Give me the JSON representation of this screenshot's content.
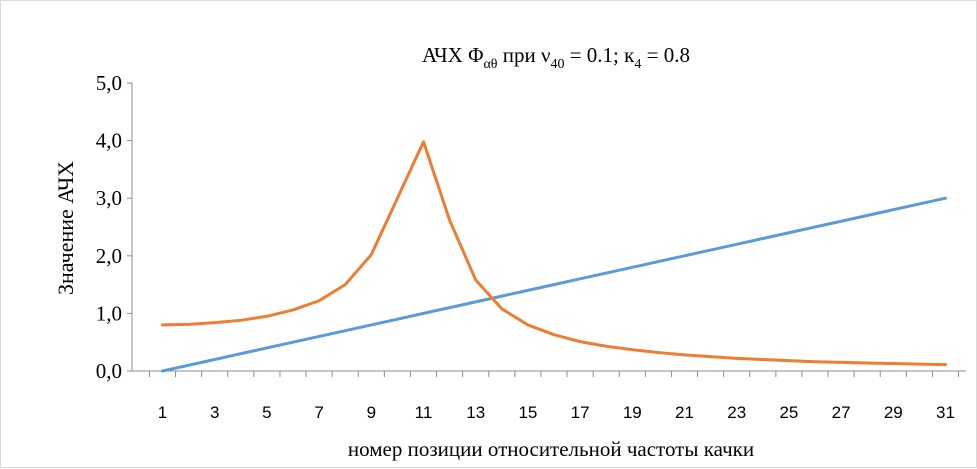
{
  "chart_data": {
    "type": "line",
    "title": {
      "prefix": "АЧХ Φ",
      "prefix_sub": "αθ",
      "middle": " при ν",
      "middle_sub": "40",
      "rest1": " = 0.1; к",
      "rest1_sub": "4",
      "rest2": " = 0.8"
    },
    "xlabel": "номер позиции относительной частоты качки",
    "ylabel": "Значение АЧХ",
    "x": [
      1,
      2,
      3,
      4,
      5,
      6,
      7,
      8,
      9,
      10,
      11,
      12,
      13,
      14,
      15,
      16,
      17,
      18,
      19,
      20,
      21,
      22,
      23,
      24,
      25,
      26,
      27,
      28,
      29,
      30,
      31
    ],
    "x_tick_labels": [
      "1",
      "3",
      "5",
      "7",
      "9",
      "11",
      "13",
      "15",
      "17",
      "19",
      "21",
      "23",
      "25",
      "27",
      "29",
      "31"
    ],
    "y_tick_labels": [
      "0,0",
      "1,0",
      "2,0",
      "3,0",
      "4,0",
      "5,0"
    ],
    "ylim": [
      0,
      5
    ],
    "xlim": [
      1,
      31
    ],
    "grid": false,
    "series": [
      {
        "color": "#5b9bd5",
        "values": [
          0.0,
          0.1,
          0.2,
          0.3,
          0.4,
          0.5,
          0.6,
          0.7,
          0.8,
          0.9,
          1.0,
          1.1,
          1.2,
          1.3,
          1.4,
          1.5,
          1.6,
          1.7,
          1.8,
          1.9,
          2.0,
          2.1,
          2.2,
          2.3,
          2.4,
          2.5,
          2.6,
          2.7,
          2.8,
          2.9,
          3.0
        ]
      },
      {
        "color": "#ed7d31",
        "values": [
          0.8,
          0.81,
          0.84,
          0.88,
          0.95,
          1.06,
          1.22,
          1.5,
          2.02,
          3.0,
          3.98,
          2.62,
          1.58,
          1.08,
          0.8,
          0.63,
          0.51,
          0.43,
          0.37,
          0.32,
          0.28,
          0.25,
          0.22,
          0.2,
          0.18,
          0.16,
          0.15,
          0.14,
          0.13,
          0.12,
          0.11
        ]
      }
    ]
  }
}
